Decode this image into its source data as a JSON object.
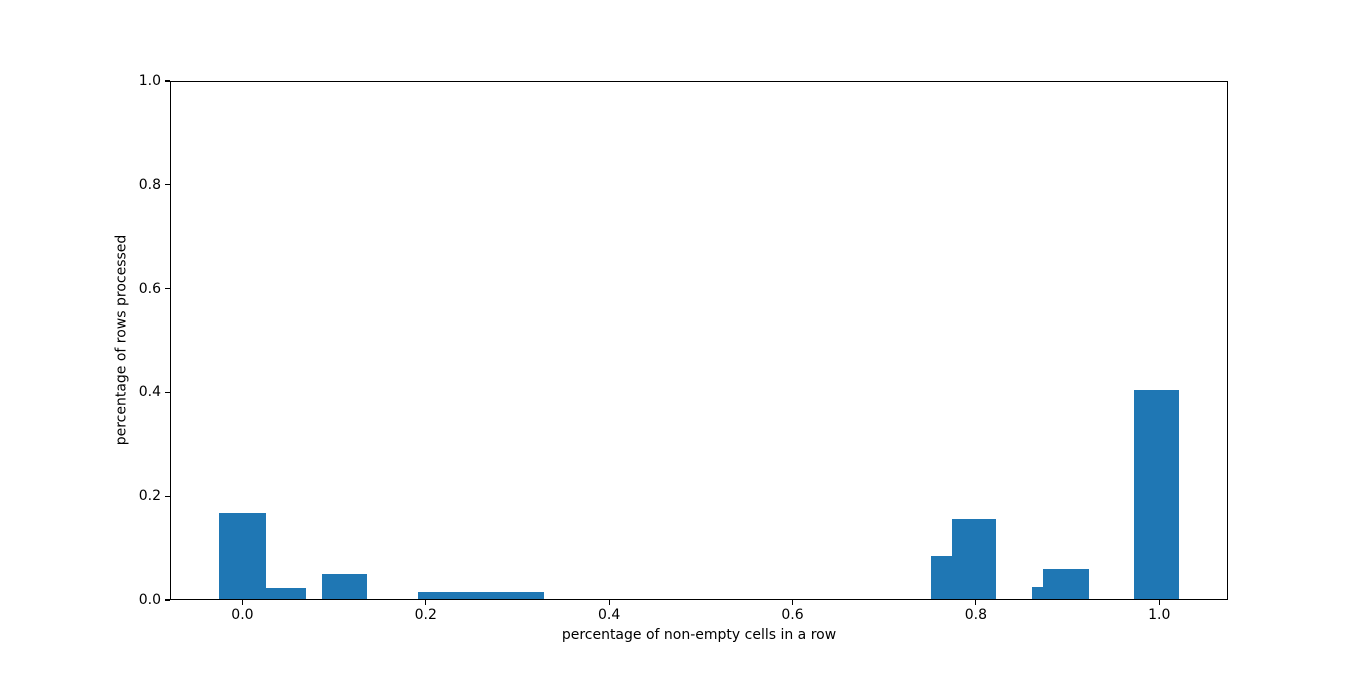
{
  "chart_data": {
    "type": "bar",
    "subtype": "histogram",
    "title": "",
    "xlabel": "percentage of non-empty cells in a row",
    "ylabel": "percentage of rows processed",
    "xlim": [
      -0.079,
      1.075
    ],
    "ylim": [
      0.0,
      1.0
    ],
    "x_ticks": [
      0.0,
      0.2,
      0.4,
      0.6,
      0.8,
      1.0
    ],
    "x_tick_labels": [
      "0.0",
      "0.2",
      "0.4",
      "0.6",
      "0.8",
      "1.0"
    ],
    "y_ticks": [
      0.0,
      0.2,
      0.4,
      0.6,
      0.8,
      1.0
    ],
    "y_tick_labels": [
      "0.0",
      "0.2",
      "0.4",
      "0.6",
      "0.8",
      "1.0"
    ],
    "grid": false,
    "legend": false,
    "bar_color": "#1f77b4",
    "axis_color": "#000000",
    "background_color": "#ffffff",
    "bars": [
      {
        "x_start": -0.026,
        "x_end": 0.025,
        "height": 0.167
      },
      {
        "x_start": 0.025,
        "x_end": 0.068,
        "height": 0.022
      },
      {
        "x_start": 0.086,
        "x_end": 0.135,
        "height": 0.049
      },
      {
        "x_start": 0.191,
        "x_end": 0.329,
        "height": 0.014
      },
      {
        "x_start": 0.752,
        "x_end": 0.774,
        "height": 0.083
      },
      {
        "x_start": 0.774,
        "x_end": 0.823,
        "height": 0.154
      },
      {
        "x_start": 0.862,
        "x_end": 0.874,
        "height": 0.024
      },
      {
        "x_start": 0.874,
        "x_end": 0.924,
        "height": 0.059
      },
      {
        "x_start": 0.973,
        "x_end": 1.023,
        "height": 0.404
      }
    ]
  }
}
